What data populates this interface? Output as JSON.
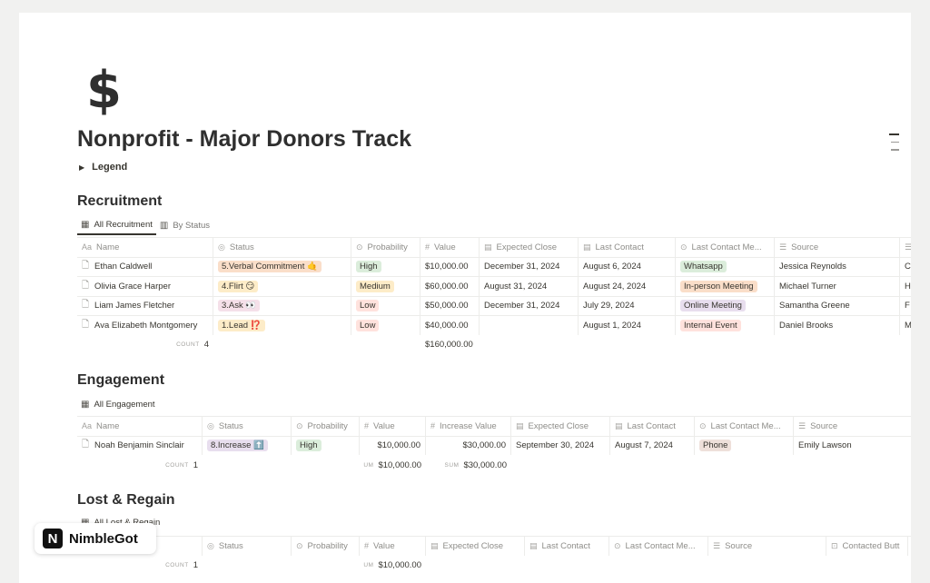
{
  "page": {
    "icon": "$",
    "title": "Nonprofit - Major Donors Track",
    "legend": "Legend"
  },
  "colors": {
    "orange": "#fadec9",
    "yellow": "#fdecc8",
    "pink": "#f5e0e9",
    "purple": "#e8deee",
    "green": "#dbeddb",
    "red": "#ffe2dd",
    "brown": "#eee0da",
    "gray": "#e3e2e0"
  },
  "recruitment": {
    "title": "Recruitment",
    "views": [
      "All Recruitment",
      "By Status"
    ],
    "headers": [
      "Name",
      "Status",
      "Probability",
      "Value",
      "Expected Close",
      "Last Contact",
      "Last Contact Me...",
      "Source",
      ""
    ],
    "rows": [
      {
        "name": "Ethan Caldwell",
        "status": "5.Verbal Commitment 🤙",
        "probability": "High",
        "value": "$10,000.00",
        "expected_close": "December 31, 2024",
        "last_contact": "August 6, 2024",
        "method": "Whatsapp",
        "source": "Jessica Reynolds",
        "extra": "C"
      },
      {
        "name": "Olivia Grace Harper",
        "status": "4.Flirt 😏",
        "probability": "Medium",
        "value": "$60,000.00",
        "expected_close": "August 31, 2024",
        "last_contact": "August 24, 2024",
        "method": "In-person Meeting",
        "source": "Michael Turner",
        "extra": "H"
      },
      {
        "name": "Liam James Fletcher",
        "status": "3.Ask 👀",
        "probability": "Low",
        "value": "$50,000.00",
        "expected_close": "December 31, 2024",
        "last_contact": "July 29, 2024",
        "method": "Online Meeting",
        "source": "Samantha Greene",
        "extra": "F"
      },
      {
        "name": "Ava Elizabeth Montgomery",
        "status": "1.Lead ⁉️",
        "probability": "Low",
        "value": "$40,000.00",
        "expected_close": "",
        "last_contact": "August 1, 2024",
        "method": "Internal Event",
        "source": "Daniel Brooks",
        "extra": "M"
      }
    ],
    "footer": {
      "count_label": "COUNT",
      "count": "4",
      "sum": "$160,000.00"
    }
  },
  "engagement": {
    "title": "Engagement",
    "views": [
      "All Engagement"
    ],
    "headers": [
      "Name",
      "Status",
      "Probability",
      "Value",
      "Increase Value",
      "Expected Close",
      "Last Contact",
      "Last Contact Me...",
      "Source"
    ],
    "rows": [
      {
        "name": "Noah Benjamin Sinclair",
        "status": "8.Increase ⬆️",
        "probability": "High",
        "value": "$10,000.00",
        "increase_value": "$30,000.00",
        "expected_close": "September 30, 2024",
        "last_contact": "August 7, 2024",
        "method": "Phone",
        "source": "Emily Lawson"
      }
    ],
    "footer": {
      "count_label": "COUNT",
      "count": "1",
      "sum_label_value": "UM",
      "sum_value": "$10,000.00",
      "sum_label_increase": "SUM",
      "sum_increase": "$30,000.00"
    }
  },
  "lost": {
    "title": "Lost & Regain",
    "views": [
      "All Lost & Regain"
    ],
    "headers": [
      "",
      "Status",
      "Probability",
      "Value",
      "Expected Close",
      "Last Contact",
      "Last Contact Me...",
      "Source",
      "Contacted Butt"
    ],
    "footer": {
      "count_label": "COUNT",
      "count": "1",
      "sum_label": "UM",
      "sum": "$10,000.00"
    }
  },
  "brand": {
    "logo": "N",
    "name": "NimbleGot"
  }
}
